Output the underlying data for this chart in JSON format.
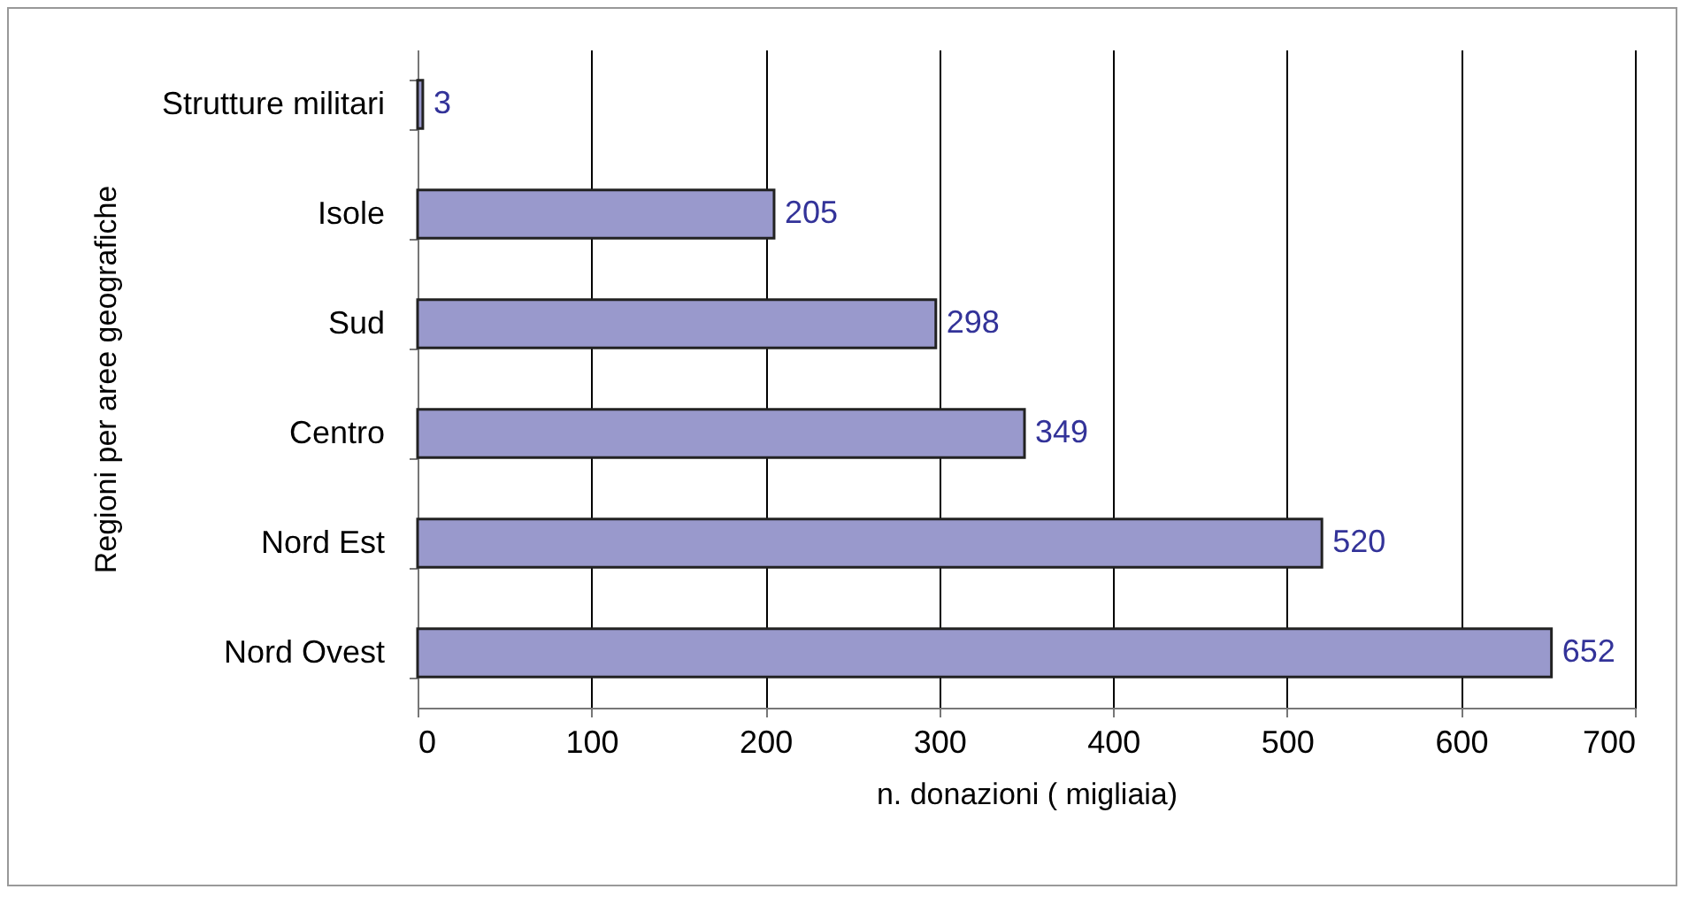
{
  "chart_data": {
    "type": "bar",
    "orientation": "horizontal",
    "xlabel": "n. donazioni ( migliaia)",
    "ylabel": "Regioni per aree geografiche",
    "categories": [
      "Strutture militari",
      "Isole",
      "Sud",
      "Centro",
      "Nord Est",
      "Nord Ovest"
    ],
    "values": [
      3,
      205,
      298,
      349,
      520,
      652
    ],
    "color": "#9999cc",
    "data_labels": true,
    "xlim": [
      0,
      700
    ],
    "xticks": [
      0,
      100,
      200,
      300,
      400,
      500,
      600,
      700
    ],
    "grid": "x"
  }
}
